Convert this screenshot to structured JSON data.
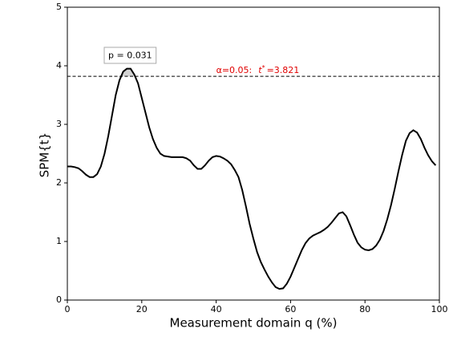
{
  "chart_data": {
    "type": "line",
    "xlabel": "Measurement domain q (%)",
    "ylabel": "SPM{t}",
    "x": [
      0,
      1,
      2,
      3,
      4,
      5,
      6,
      7,
      8,
      9,
      10,
      11,
      12,
      13,
      14,
      15,
      16,
      17,
      18,
      19,
      20,
      21,
      22,
      23,
      24,
      25,
      26,
      27,
      28,
      29,
      30,
      31,
      32,
      33,
      34,
      35,
      36,
      37,
      38,
      39,
      40,
      41,
      42,
      43,
      44,
      45,
      46,
      47,
      48,
      49,
      50,
      51,
      52,
      53,
      54,
      55,
      56,
      57,
      58,
      59,
      60,
      61,
      62,
      63,
      64,
      65,
      66,
      67,
      68,
      69,
      70,
      71,
      72,
      73,
      74,
      75,
      76,
      77,
      78,
      79,
      80,
      81,
      82,
      83,
      84,
      85,
      86,
      87,
      88,
      89,
      90,
      91,
      92,
      93,
      94,
      95,
      96,
      97,
      98,
      99
    ],
    "values": [
      2.28,
      2.28,
      2.27,
      2.25,
      2.2,
      2.14,
      2.1,
      2.1,
      2.15,
      2.28,
      2.5,
      2.8,
      3.15,
      3.5,
      3.75,
      3.9,
      3.95,
      3.95,
      3.85,
      3.7,
      3.45,
      3.2,
      2.95,
      2.75,
      2.6,
      2.5,
      2.46,
      2.45,
      2.44,
      2.44,
      2.44,
      2.44,
      2.42,
      2.38,
      2.3,
      2.24,
      2.24,
      2.3,
      2.38,
      2.44,
      2.46,
      2.45,
      2.42,
      2.38,
      2.32,
      2.22,
      2.1,
      1.88,
      1.6,
      1.3,
      1.05,
      0.82,
      0.65,
      0.52,
      0.4,
      0.3,
      0.22,
      0.19,
      0.2,
      0.28,
      0.4,
      0.55,
      0.7,
      0.85,
      0.97,
      1.05,
      1.1,
      1.13,
      1.16,
      1.2,
      1.25,
      1.32,
      1.4,
      1.48,
      1.5,
      1.43,
      1.28,
      1.12,
      0.98,
      0.9,
      0.86,
      0.85,
      0.87,
      0.93,
      1.03,
      1.18,
      1.38,
      1.62,
      1.9,
      2.2,
      2.48,
      2.72,
      2.85,
      2.9,
      2.86,
      2.75,
      2.6,
      2.47,
      2.37,
      2.3
    ],
    "color": "#000000",
    "threshold": 3.821,
    "threshold_color": "#000000",
    "threshold_label": {
      "prefix": "α=0.05:",
      "symbol": "t",
      "superscript": "*",
      "value_text": "=3.821"
    },
    "threshold_label_color": "#e00000",
    "cluster_fill": "#d3d3d3",
    "annotation": "p = 0.031",
    "xlim": [
      0,
      100
    ],
    "xticks": [
      0,
      20,
      40,
      60,
      80,
      100
    ],
    "ylim": [
      0,
      5
    ],
    "yticks": [
      0,
      1,
      2,
      3,
      4,
      5
    ],
    "grid": false
  }
}
